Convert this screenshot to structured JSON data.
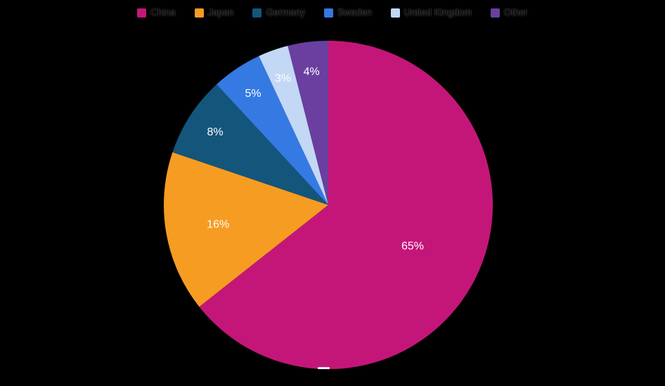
{
  "page": {
    "background": "#000000"
  },
  "chart_data": {
    "type": "pie",
    "title": "",
    "categories": [
      "China",
      "Japan",
      "Germany",
      "Sweden",
      "United Kingdom",
      "Other"
    ],
    "values": [
      65,
      16,
      8,
      5,
      3,
      4
    ],
    "unit": "%",
    "slice_labels": [
      "65%",
      "16%",
      "8%",
      "5%",
      "3%",
      "4%"
    ],
    "colors": [
      "#C41679",
      "#F69C23",
      "#14557C",
      "#3579E3",
      "#C2D8F5",
      "#6A3FA0"
    ],
    "label_color": "#ffffff",
    "legend": {
      "position": "top",
      "text_color": "#000000"
    },
    "start_angle_deg": 0,
    "direction": "clockwise"
  }
}
